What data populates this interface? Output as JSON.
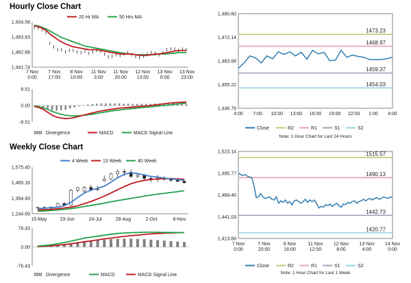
{
  "hourly": {
    "title": "Hourly Close Chart",
    "price": {
      "legend": [
        "20 Hr MA",
        "50 Hrs MA"
      ],
      "y_ticks": [
        "1,504.58",
        "1,483.63",
        "1,462.68",
        "1,441.74"
      ],
      "ylim": [
        1441.74,
        1504.58
      ],
      "x_ticks": [
        [
          "7 Nov",
          "0:00"
        ],
        [
          "7 Nov",
          "17:00"
        ],
        [
          "8 Nov",
          "10:00"
        ],
        [
          "11 Nov",
          "3:00"
        ],
        [
          "11 Nov",
          "20:00"
        ],
        [
          "12 Nov",
          "13:00"
        ],
        [
          "13 Nov",
          "6:00"
        ],
        [
          "13 Nov",
          "23:00"
        ]
      ],
      "close": [
        1497,
        1496,
        1494,
        1490,
        1475,
        1470,
        1466,
        1466,
        1463,
        1465,
        1465,
        1463,
        1462,
        1464,
        1461,
        1463,
        1465,
        1464,
        1460,
        1456,
        1457,
        1459,
        1458,
        1460,
        1462,
        1459,
        1456,
        1455,
        1457,
        1460,
        1462,
        1461,
        1459,
        1462,
        1466,
        1467,
        1467,
        1465,
        1467,
        1466
      ],
      "ma20": [
        1499,
        1498,
        1496,
        1493,
        1488,
        1484,
        1480,
        1477,
        1474,
        1472,
        1470,
        1469,
        1468,
        1467,
        1466,
        1466,
        1466,
        1465,
        1464,
        1463,
        1462,
        1461,
        1460,
        1460,
        1460,
        1460,
        1459,
        1458,
        1458,
        1458,
        1459,
        1460,
        1460,
        1461,
        1462,
        1463,
        1464,
        1465,
        1465,
        1465
      ],
      "ma50": [
        1500,
        1499,
        1497,
        1495,
        1492,
        1489,
        1486,
        1483,
        1481,
        1479,
        1477,
        1475,
        1473,
        1471,
        1470,
        1469,
        1468,
        1467,
        1466,
        1465,
        1464,
        1463,
        1462,
        1461,
        1460,
        1460,
        1459,
        1459,
        1459,
        1459,
        1459,
        1459,
        1460,
        1460,
        1460,
        1461,
        1461,
        1462,
        1462,
        1462
      ]
    },
    "macd": {
      "y_ticks": [
        "8.51",
        "0.00",
        "-8.51"
      ],
      "ylim": [
        -8.51,
        8.51
      ],
      "legend": [
        "Divergence",
        "MACD",
        "MACD Signal Line"
      ],
      "macd": [
        -0.5,
        -1,
        -2,
        -3.5,
        -5,
        -6,
        -6.5,
        -6.8,
        -6.6,
        -6.2,
        -5.6,
        -5,
        -4.4,
        -3.8,
        -3.3,
        -2.8,
        -2.4,
        -2,
        -1.7,
        -1.4,
        -1.2,
        -1,
        -0.8,
        -0.6,
        -0.4,
        -0.2,
        0,
        0.3,
        0.6,
        0.9,
        1.2,
        1.4,
        1.6,
        1.7,
        1.7
      ],
      "signal": [
        -0.3,
        -0.6,
        -1.2,
        -2,
        -3,
        -3.8,
        -4.5,
        -5,
        -5.3,
        -5.4,
        -5.3,
        -5.1,
        -4.8,
        -4.5,
        -4.1,
        -3.7,
        -3.3,
        -2.9,
        -2.6,
        -2.3,
        -2,
        -1.8,
        -1.5,
        -1.3,
        -1.1,
        -0.9,
        -0.7,
        -0.5,
        -0.2,
        0,
        0.3,
        0.5,
        0.8,
        1,
        1.2
      ]
    },
    "intraday": {
      "levels": {
        "R2": 1473.23,
        "R1": 1468.97,
        "S1": 1459.37,
        "S2": 1454.03
      },
      "y_ticks": [
        "1,480.60",
        "1,472.14",
        "1,463.68",
        "1,455.22",
        "1,446.76"
      ],
      "ylim": [
        1446.76,
        1480.6
      ],
      "x_ticks": [
        "4:00",
        "7:00",
        "10:00",
        "13:00",
        "16:00",
        "19:00",
        "22:00",
        "1:00",
        "4:00"
      ],
      "close": [
        1461,
        1463,
        1465.5,
        1464.8,
        1463,
        1465.5,
        1464.5,
        1467,
        1466,
        1467,
        1465.5,
        1466.8,
        1464.3,
        1467.5,
        1466.2,
        1466.8,
        1463.8,
        1464,
        1467.5,
        1465,
        1465.8,
        1465.3,
        1465,
        1464.2,
        1464.2,
        1464.2,
        1464.5,
        1465
      ]
    },
    "legend": [
      "Close",
      "R2",
      "R1",
      "S1",
      "S2"
    ],
    "note": "Note: 1 Hour Chart for Last 24 Hours"
  },
  "weekly": {
    "title": "Weekly Close Chart",
    "price": {
      "legend": [
        "4 Week",
        "13 Week",
        "40 Week"
      ],
      "y_ticks": [
        "1,575.40",
        "1,465.16",
        "1,354.93",
        "1,244.69"
      ],
      "ylim": [
        1244.69,
        1575.4
      ],
      "x_ticks": [
        "15-May",
        "19-Jun",
        "24-Jul",
        "28-Aug",
        "2-Oct",
        "6-Nov"
      ],
      "candles": [
        [
          1286,
          1295,
          1278,
          1290
        ],
        [
          1290,
          1298,
          1280,
          1284
        ],
        [
          1284,
          1296,
          1276,
          1293
        ],
        [
          1293,
          1322,
          1288,
          1318
        ],
        [
          1318,
          1325,
          1300,
          1306
        ],
        [
          1306,
          1420,
          1300,
          1412
        ],
        [
          1412,
          1435,
          1398,
          1430
        ],
        [
          1405,
          1442,
          1395,
          1432
        ],
        [
          1432,
          1450,
          1405,
          1415
        ],
        [
          1415,
          1445,
          1405,
          1420
        ],
        [
          1480,
          1515,
          1470,
          1492
        ],
        [
          1492,
          1535,
          1485,
          1528
        ],
        [
          1528,
          1560,
          1505,
          1545
        ],
        [
          1545,
          1562,
          1512,
          1540
        ],
        [
          1540,
          1560,
          1498,
          1510
        ],
        [
          1510,
          1532,
          1498,
          1520
        ],
        [
          1520,
          1528,
          1480,
          1496
        ],
        [
          1496,
          1510,
          1470,
          1488
        ],
        [
          1488,
          1520,
          1470,
          1500
        ],
        [
          1500,
          1512,
          1478,
          1490
        ],
        [
          1490,
          1502,
          1474,
          1482
        ],
        [
          1482,
          1500,
          1470,
          1475
        ],
        [
          1475,
          1488,
          1460,
          1465
        ]
      ],
      "ma4": [
        1280,
        1284,
        1288,
        1292,
        1302,
        1326,
        1360,
        1392,
        1412,
        1426,
        1440,
        1470,
        1500,
        1526,
        1536,
        1530,
        1520,
        1510,
        1505,
        1498,
        1492,
        1488,
        1482
      ],
      "ma13": [
        1272,
        1274,
        1276,
        1280,
        1286,
        1292,
        1302,
        1316,
        1332,
        1350,
        1370,
        1392,
        1416,
        1438,
        1458,
        1472,
        1482,
        1488,
        1492,
        1494,
        1494,
        1492,
        1490
      ],
      "ma40": [
        1262,
        1265,
        1268,
        1272,
        1276,
        1282,
        1288,
        1296,
        1304,
        1312,
        1320,
        1330,
        1338,
        1346,
        1354,
        1362,
        1370,
        1378,
        1384,
        1390,
        1396,
        1402,
        1408
      ]
    },
    "macd": {
      "y_ticks": [
        "76.43",
        "0.00",
        "-76.43"
      ],
      "ylim": [
        -76.43,
        76.43
      ],
      "legend": [
        "Divergence",
        "MACD",
        "MACD Signal Line"
      ],
      "divergence": [
        2,
        4,
        6,
        9,
        12,
        16,
        20,
        24,
        26,
        28,
        30,
        32,
        33,
        34,
        34,
        33,
        32,
        30,
        28,
        26,
        24,
        22,
        20
      ],
      "macd": [
        4,
        6,
        9,
        13,
        18,
        24,
        30,
        36,
        40,
        44,
        48,
        52,
        55,
        57,
        58,
        59,
        60,
        60,
        60,
        59,
        59,
        59,
        58
      ],
      "signal": [
        2,
        3,
        5,
        7,
        10,
        13,
        17,
        21,
        25,
        29,
        33,
        36,
        40,
        43,
        46,
        48,
        51,
        53,
        55,
        56,
        57,
        58,
        58
      ]
    },
    "intraday": {
      "levels": {
        "R2": 1515.57,
        "R1": 1490.13,
        "S1": 1442.73,
        "S2": 1420.77
      },
      "y_ticks": [
        "1,523.14",
        "1,495.77",
        "1,468.40",
        "1,441.03",
        "1,413.66"
      ],
      "ylim": [
        1413.66,
        1523.14
      ],
      "x_ticks": [
        [
          "7 Nov",
          "0:00"
        ],
        [
          "7 Nov",
          "20:00"
        ],
        [
          "8 Nov",
          "16:00"
        ],
        [
          "11 Nov",
          "12:00"
        ],
        [
          "12 Nov",
          "8:00"
        ],
        [
          "13 Nov",
          "4:00"
        ],
        [
          "14 Nov",
          "0:00"
        ]
      ],
      "close": [
        1496,
        1494,
        1493,
        1494,
        1492,
        1491,
        1490,
        1480,
        1465,
        1466,
        1470,
        1466,
        1464,
        1465,
        1466,
        1463,
        1462,
        1466,
        1458,
        1461,
        1459,
        1462,
        1458,
        1460,
        1456,
        1461,
        1462,
        1460,
        1458,
        1460,
        1463,
        1459,
        1462,
        1460,
        1462,
        1458,
        1452,
        1454,
        1453,
        1456,
        1455,
        1457,
        1454,
        1456,
        1458,
        1455,
        1453,
        1457,
        1456,
        1459,
        1458,
        1460,
        1461,
        1458,
        1460,
        1461,
        1463,
        1461,
        1463,
        1464,
        1462,
        1464,
        1465,
        1463,
        1464,
        1466,
        1465,
        1464,
        1466,
        1465
      ]
    },
    "legend": [
      "Close",
      "R2",
      "R1",
      "S1",
      "S2"
    ],
    "note": "Note: 1 Hour Chart for Last 1 Week"
  },
  "colors": {
    "close": "#2e7bb0",
    "ma_red": "#c0171e",
    "ma_green": "#22a24b",
    "r2": "#b7cf7a",
    "r1": "#e7a1a8",
    "s1": "#a89db8",
    "s2": "#8fd3df",
    "ma4": "#3f7fc8",
    "bar": "#808080"
  }
}
